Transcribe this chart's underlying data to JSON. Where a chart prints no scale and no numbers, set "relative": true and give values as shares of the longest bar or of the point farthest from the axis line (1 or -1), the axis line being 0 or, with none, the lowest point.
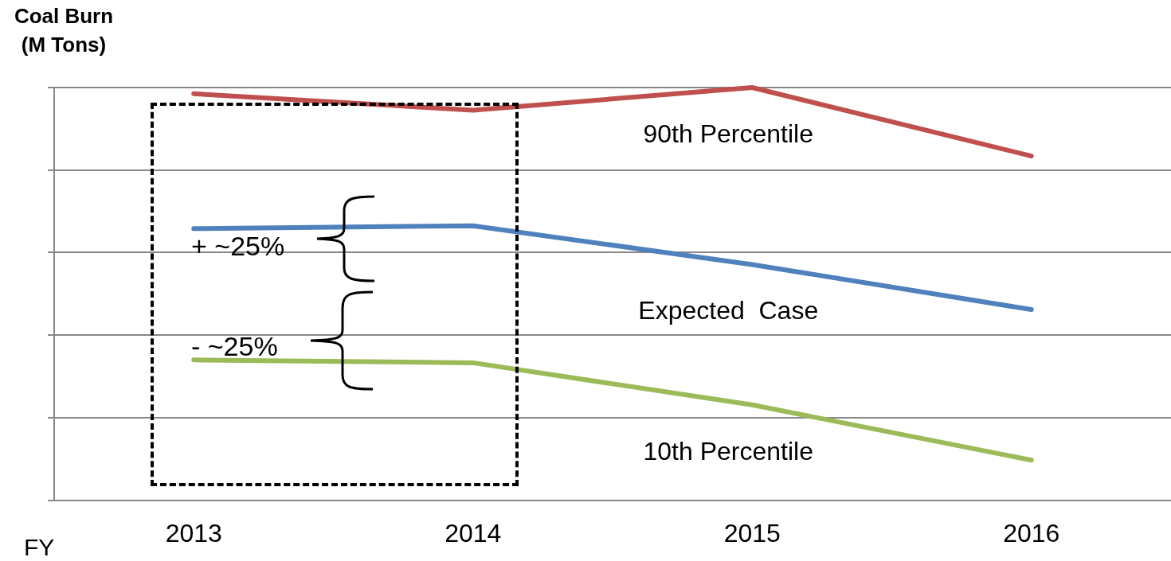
{
  "chart_data": {
    "type": "line",
    "relative": true,
    "xlabel": "FY",
    "categories": [
      "2013",
      "2014",
      "2015",
      "2016"
    ],
    "series": [
      {
        "name": "90th Percentile",
        "color": "#c0504d",
        "values": [
          0.985,
          0.945,
          1,
          0.834
        ]
      },
      {
        "name": "Expected  Case",
        "color": "#4f81bd",
        "values": [
          0.658,
          0.665,
          0.571,
          0.462
        ]
      },
      {
        "name": "10th Percentile",
        "color": "#9bbb59",
        "values": [
          0.34,
          0.333,
          0.231,
          0.097
        ]
      }
    ],
    "annotations": [
      "Coal Burn\n(M Tons)",
      "+ ~25%",
      "- ~25%"
    ],
    "grid": "y",
    "legend": false,
    "marker": "none",
    "line_style": "solid"
  }
}
